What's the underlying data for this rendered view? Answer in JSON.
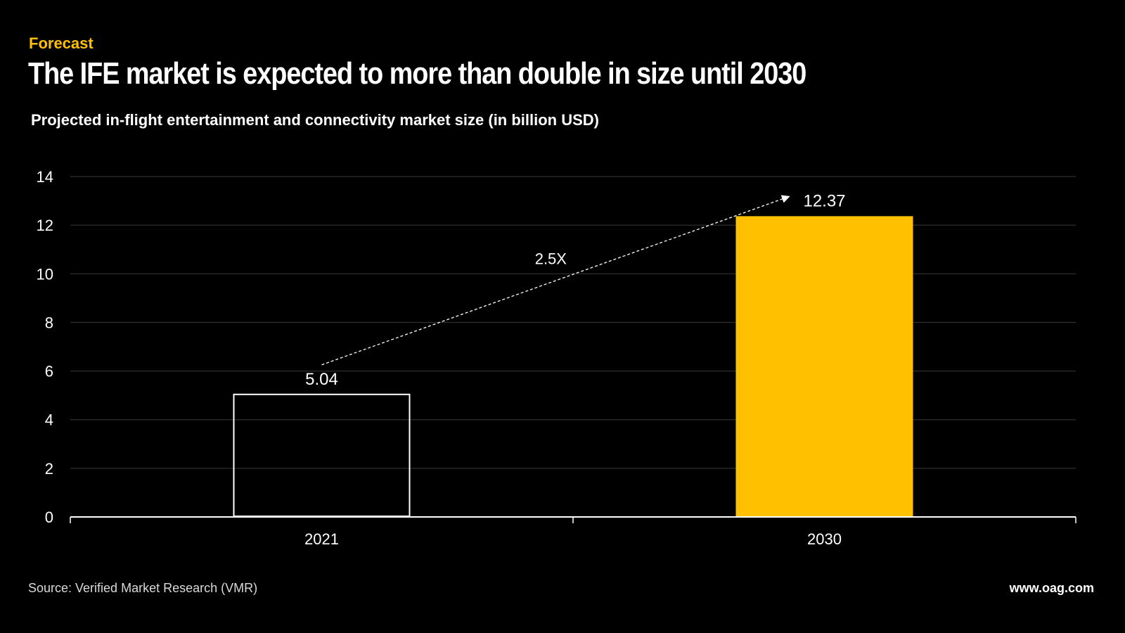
{
  "header": {
    "kicker": "Forecast",
    "headline": "The IFE market is expected to more than double in size until 2030",
    "subtitle": "Projected in-flight entertainment and connectivity market size (in billion USD)"
  },
  "footer": {
    "source": "Source: Verified Market Research (VMR)",
    "url": "www.oag.com"
  },
  "colors": {
    "background": "#000000",
    "accent": "#FFC000",
    "text": "#FFFFFF",
    "grid": "#3a3a3a"
  },
  "chart_data": {
    "type": "bar",
    "categories": [
      "2021",
      "2030"
    ],
    "values": [
      5.04,
      12.37
    ],
    "data_labels": [
      "5.04",
      "12.37"
    ],
    "yticks": [
      "0",
      "2",
      "4",
      "6",
      "8",
      "10",
      "12",
      "14"
    ],
    "ylim": [
      0,
      14
    ],
    "grid": true,
    "bar_styles": [
      "outline-white",
      "filled-accent"
    ],
    "annotation": {
      "text": "2.5X",
      "type": "dashed-arrow",
      "from_category": "2021",
      "to_category": "2030"
    }
  }
}
